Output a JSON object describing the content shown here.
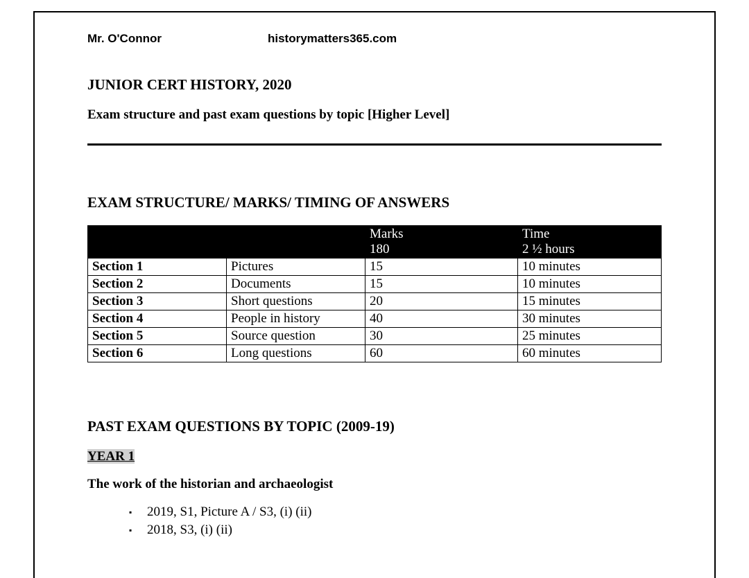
{
  "header": {
    "author": "Mr. O'Connor",
    "site": "historymatters365.com"
  },
  "title": "JUNIOR CERT HISTORY, 2020",
  "subtitle": "Exam structure and past exam questions by topic [Higher Level]",
  "structure_heading": "EXAM STRUCTURE/ MARKS/ TIMING OF ANSWERS",
  "table": {
    "header": {
      "blank1": "",
      "blank2": "",
      "marks_label": "Marks",
      "marks_total": "180",
      "time_label": "Time",
      "time_total": "2 ½ hours"
    },
    "rows": [
      {
        "section": "Section 1",
        "desc": "Pictures",
        "marks": "15",
        "time": "10 minutes"
      },
      {
        "section": "Section 2",
        "desc": "Documents",
        "marks": "15",
        "time": "10 minutes"
      },
      {
        "section": "Section 3",
        "desc": "Short questions",
        "marks": "20",
        "time": "15 minutes"
      },
      {
        "section": "Section 4",
        "desc": "People in history",
        "marks": "40",
        "time": "30 minutes"
      },
      {
        "section": "Section 5",
        "desc": "Source question",
        "marks": "30",
        "time": "25 minutes"
      },
      {
        "section": "Section 6",
        "desc": "Long questions",
        "marks": "60",
        "time": "60 minutes"
      }
    ]
  },
  "past_heading": "PAST EXAM QUESTIONS BY TOPIC (2009-19)",
  "year_label": "YEAR 1",
  "topic_title": "The work of the historian and archaeologist",
  "bullets": [
    "2019, S1, Picture A / S3, (i) (ii)",
    "2018, S3, (i) (ii)"
  ],
  "colors": {
    "text": "#000000",
    "background": "#ffffff",
    "table_header_bg": "#000000",
    "table_header_text": "#ffffff",
    "highlight_bg": "#d0d0d0"
  },
  "typography": {
    "body_font": "Times New Roman",
    "header_font": "Segoe UI",
    "title_size_pt": 16,
    "body_size_pt": 14
  }
}
